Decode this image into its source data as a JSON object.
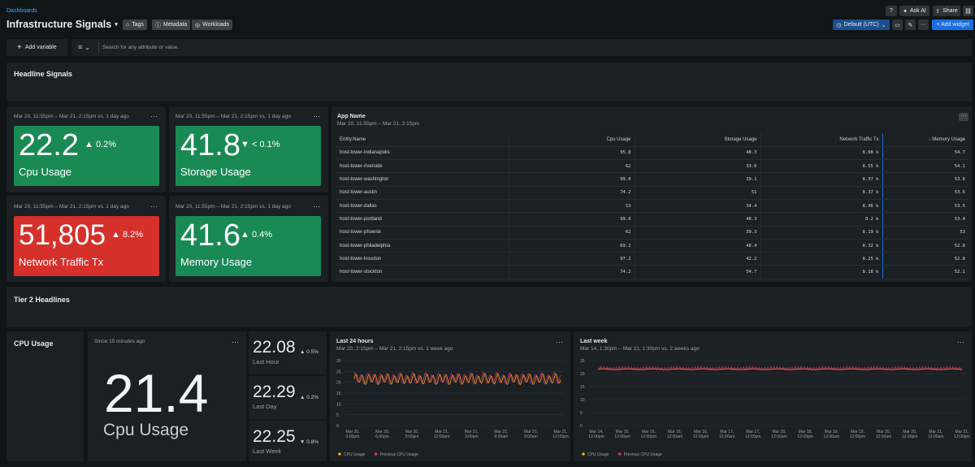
{
  "breadcrumb": "Dashboards",
  "title": "Infrastructure Signals",
  "tags": {
    "tags": "Tags",
    "metadata": "Metadata",
    "workloads": "Workloads"
  },
  "top_actions": {
    "ask_ai": "Ask AI",
    "share": "Share"
  },
  "toolbar": {
    "timezone": "Default (UTC)",
    "add_widget": "+ Add widget",
    "more": "···"
  },
  "filter": {
    "add_variable": "Add variable",
    "search_placeholder": "Search for any attribute or value."
  },
  "sections": {
    "headline": "Headline Signals",
    "tier2": "Tier 2 Headlines"
  },
  "billboards": [
    {
      "range": "Mar 20, 11:55pm – Mar 21, 2:15pm vs. 1 day ago",
      "value": "22.2",
      "change": "▲ 0.2%",
      "label": "Cpu Usage",
      "color": "#1a8a55"
    },
    {
      "range": "Mar 20, 11:55pm – Mar 21, 2:15pm vs. 1 day ago",
      "value": "41.8",
      "change": "▼ < 0.1%",
      "label": "Storage Usage",
      "color": "#1a8a55"
    },
    {
      "range": "Mar 20, 11:55pm – Mar 21, 2:15pm vs. 1 day ago",
      "value": "51,805",
      "change": "▲ 8.2%",
      "label": "Network Traffic Tx",
      "color": "#d6302b"
    },
    {
      "range": "Mar 20, 11:55pm – Mar 21, 2:15pm vs. 1 day ago",
      "value": "41.6",
      "change": "▲ 0.4%",
      "label": "Memory Usage",
      "color": "#1a8a55"
    }
  ],
  "table": {
    "title": "App Name",
    "range": "Mar 20, 11:55pm – Mar 21, 2:15pm",
    "columns": [
      "Entity.Name",
      "Cpu Usage",
      "Storage Usage",
      "Network Traffic Tx",
      "↓ Memory Usage"
    ],
    "rows": [
      [
        "host-tower-indianapolis",
        "95.8",
        "48.3",
        "8.08 k",
        "54.7"
      ],
      [
        "host-tower-riverside",
        "62",
        "33.6",
        "8.55 k",
        "54.1"
      ],
      [
        "host-tower-washington",
        "99.8",
        "39.1",
        "8.37 k",
        "53.6"
      ],
      [
        "host-tower-austin",
        "74.2",
        "51",
        "8.37 k",
        "53.6"
      ],
      [
        "host-tower-dallas",
        "53",
        "34.4",
        "8.46 k",
        "53.5"
      ],
      [
        "host-tower-portland",
        "99.8",
        "48.3",
        "8.2 k",
        "53.4"
      ],
      [
        "host-tower-phoenix",
        "62",
        "39.3",
        "8.19 k",
        "53"
      ],
      [
        "host-tower-philadelphia",
        "69.2",
        "48.4",
        "8.32 k",
        "52.8"
      ],
      [
        "host-tower-houston",
        "97.2",
        "42.2",
        "8.25 k",
        "52.8"
      ],
      [
        "host-tower-stockton",
        "74.2",
        "54.7",
        "8.18 k",
        "52.1"
      ]
    ]
  },
  "cpu_panel": {
    "title": "CPU Usage",
    "since": "Since 15 minutes ago",
    "value": "21.4",
    "label": "Cpu Usage"
  },
  "comparisons": [
    {
      "value": "22.08",
      "change": "▲ 0.5%",
      "label": "Last Hour"
    },
    {
      "value": "22.29",
      "change": "▲ 0.2%",
      "label": "Last Day"
    },
    {
      "value": "22.25",
      "change": "▼ 0.8%",
      "label": "Last Week"
    }
  ],
  "chart_data": [
    {
      "type": "line",
      "title": "Last 24 hours",
      "subtitle": "Mar 20, 2:15pm – Mar 21, 2:15pm vs. 1 week ago",
      "yticks": [
        "0",
        "5",
        "10",
        "15",
        "20",
        "25",
        "30"
      ],
      "ylim": [
        0,
        30
      ],
      "xticks": [
        "Mar 20, 3:00pm",
        "Mar 20, 6:00pm",
        "Mar 20, 9:00pm",
        "Mar 21, 12:00am",
        "Mar 21, 3:00am",
        "Mar 21, 6:00am",
        "Mar 21, 9:00am",
        "Mar 21, 12:00pm"
      ],
      "series": [
        {
          "name": "CPU Usage",
          "color": "#f5a623",
          "mean": 21.5,
          "amplitude": 2,
          "cycles": 32
        },
        {
          "name": "Previous CPU Usage",
          "color": "#d6336c",
          "mean": 21.8,
          "amplitude": 2.2,
          "cycles": 32
        }
      ]
    },
    {
      "type": "line",
      "title": "Last week",
      "subtitle": "Mar 14, 1:30pm – Mar 21, 1:30pm vs. 2 weeks ago",
      "yticks": [
        "0",
        "5",
        "10",
        "15",
        "20",
        "25"
      ],
      "ylim": [
        0,
        25
      ],
      "xticks": [
        "Mar 14, 12:00pm",
        "Mar 15, 12:00am",
        "Mar 15, 12:00pm",
        "Mar 16, 12:00am",
        "Mar 16, 12:00pm",
        "Mar 17, 12:00am",
        "Mar 17, 12:00pm",
        "Mar 18, 12:00am",
        "Mar 18, 12:00pm",
        "Mar 19, 12:00am",
        "Mar 19, 12:00pm",
        "Mar 20, 12:00am",
        "Mar 20, 12:00pm",
        "Mar 21, 12:00am",
        "Mar 21, 12:00pm"
      ],
      "series": [
        {
          "name": "CPU Usage",
          "color": "#f5a623",
          "mean": 21.7,
          "amplitude": 0.5,
          "cycles": 120
        },
        {
          "name": "Previous CPU Usage",
          "color": "#d6336c",
          "mean": 22,
          "amplitude": 0.6,
          "cycles": 120
        }
      ]
    }
  ]
}
